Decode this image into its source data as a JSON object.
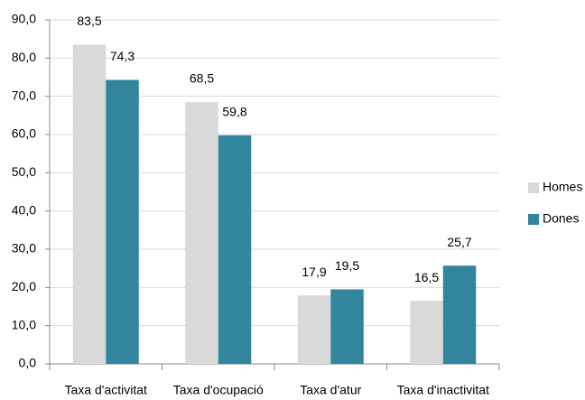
{
  "chart_data": {
    "type": "bar",
    "categories": [
      "Taxa d'activitat",
      "Taxa d'ocupació",
      "Taxa d'atur",
      "Taxa d'inactivitat"
    ],
    "series": [
      {
        "name": "Homes",
        "color": "#d9d9d9",
        "values": [
          83.5,
          68.5,
          17.9,
          16.5
        ],
        "value_labels": [
          "83,5",
          "68,5",
          "17,9",
          "16,5"
        ]
      },
      {
        "name": "Dones",
        "color": "#31859c",
        "values": [
          74.3,
          59.8,
          19.5,
          25.7
        ],
        "value_labels": [
          "74,3",
          "59,8",
          "19,5",
          "25,7"
        ]
      }
    ],
    "ylim": [
      0,
      90
    ],
    "yticks": [
      {
        "value": 0,
        "label": "0,0"
      },
      {
        "value": 10,
        "label": "10,0"
      },
      {
        "value": 20,
        "label": "20,0"
      },
      {
        "value": 30,
        "label": "30,0"
      },
      {
        "value": 40,
        "label": "40,0"
      },
      {
        "value": 50,
        "label": "50,0"
      },
      {
        "value": 60,
        "label": "60,0"
      },
      {
        "value": 70,
        "label": "70,0"
      },
      {
        "value": 80,
        "label": "80,0"
      },
      {
        "value": 90,
        "label": "90,0"
      }
    ],
    "grid": true,
    "legend": "right"
  }
}
